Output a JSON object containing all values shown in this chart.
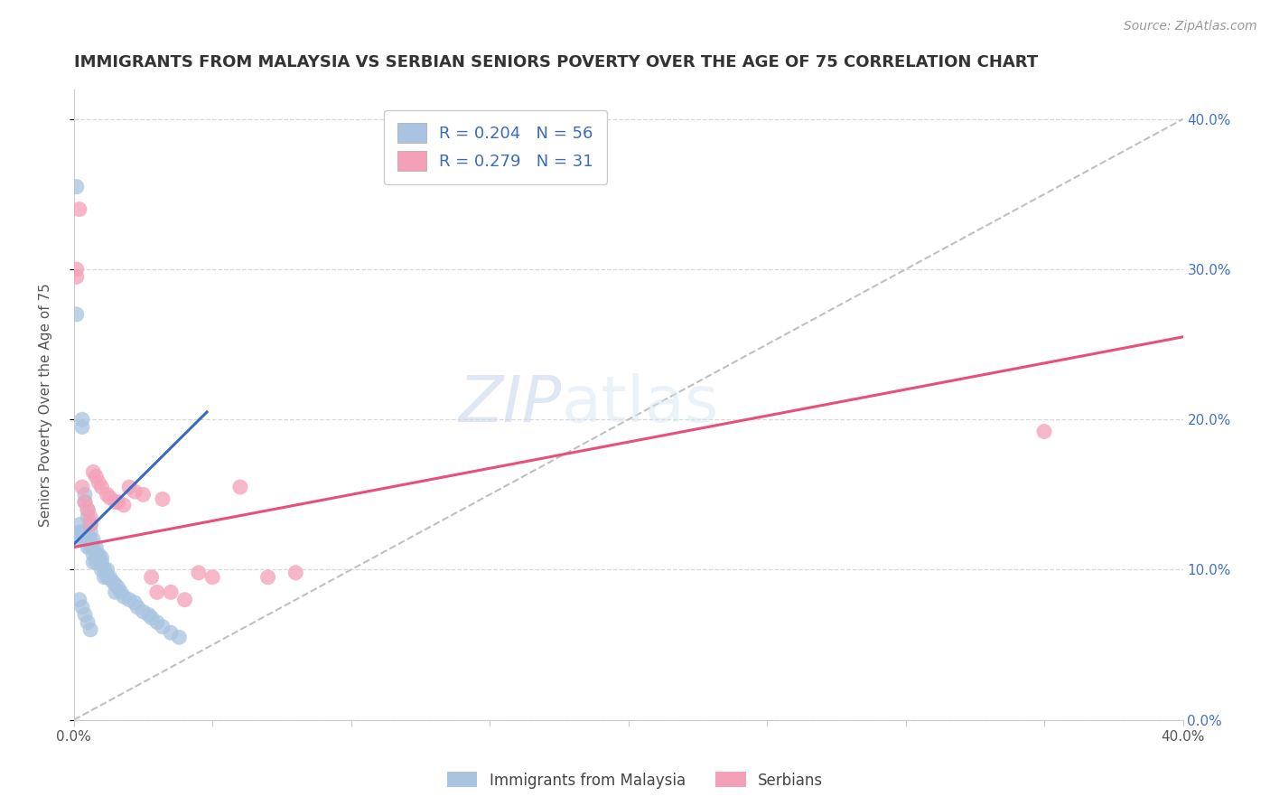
{
  "title": "IMMIGRANTS FROM MALAYSIA VS SERBIAN SENIORS POVERTY OVER THE AGE OF 75 CORRELATION CHART",
  "source": "Source: ZipAtlas.com",
  "ylabel": "Seniors Poverty Over the Age of 75",
  "xmin": 0.0,
  "xmax": 0.4,
  "ymin": 0.0,
  "ymax": 0.42,
  "malaysia_R": 0.204,
  "malaysia_N": 56,
  "serbian_R": 0.279,
  "serbian_N": 31,
  "malaysia_color": "#a8c4e0",
  "serbian_color": "#f4a0b8",
  "malaysia_line_color": "#3a6bbf",
  "serbian_line_color": "#e8507a",
  "background_color": "#ffffff",
  "grid_color": "#d8d8d8",
  "malaysia_x": [
    0.001,
    0.001,
    0.002,
    0.002,
    0.003,
    0.003,
    0.003,
    0.004,
    0.004,
    0.004,
    0.005,
    0.005,
    0.005,
    0.006,
    0.006,
    0.006,
    0.006,
    0.007,
    0.007,
    0.007,
    0.007,
    0.008,
    0.008,
    0.008,
    0.009,
    0.009,
    0.01,
    0.01,
    0.01,
    0.011,
    0.011,
    0.012,
    0.012,
    0.013,
    0.014,
    0.015,
    0.015,
    0.016,
    0.017,
    0.018,
    0.02,
    0.022,
    0.023,
    0.025,
    0.027,
    0.028,
    0.03,
    0.032,
    0.035,
    0.038,
    0.001,
    0.002,
    0.003,
    0.004,
    0.005,
    0.006
  ],
  "malaysia_y": [
    0.27,
    0.12,
    0.13,
    0.125,
    0.2,
    0.195,
    0.125,
    0.15,
    0.145,
    0.12,
    0.14,
    0.135,
    0.115,
    0.13,
    0.125,
    0.12,
    0.115,
    0.12,
    0.115,
    0.11,
    0.105,
    0.115,
    0.11,
    0.105,
    0.11,
    0.107,
    0.108,
    0.105,
    0.1,
    0.1,
    0.095,
    0.1,
    0.095,
    0.095,
    0.092,
    0.09,
    0.085,
    0.088,
    0.085,
    0.082,
    0.08,
    0.078,
    0.075,
    0.072,
    0.07,
    0.068,
    0.065,
    0.062,
    0.058,
    0.055,
    0.355,
    0.08,
    0.075,
    0.07,
    0.065,
    0.06
  ],
  "serbian_x": [
    0.001,
    0.001,
    0.002,
    0.003,
    0.004,
    0.005,
    0.006,
    0.006,
    0.007,
    0.008,
    0.009,
    0.01,
    0.012,
    0.013,
    0.015,
    0.016,
    0.018,
    0.02,
    0.022,
    0.025,
    0.028,
    0.03,
    0.032,
    0.035,
    0.04,
    0.045,
    0.05,
    0.06,
    0.07,
    0.08,
    0.35
  ],
  "serbian_y": [
    0.3,
    0.295,
    0.34,
    0.155,
    0.145,
    0.14,
    0.135,
    0.13,
    0.165,
    0.162,
    0.158,
    0.155,
    0.15,
    0.148,
    0.145,
    0.145,
    0.143,
    0.155,
    0.152,
    0.15,
    0.095,
    0.085,
    0.147,
    0.085,
    0.08,
    0.098,
    0.095,
    0.155,
    0.095,
    0.098,
    0.192
  ],
  "mal_line_x0": 0.0,
  "mal_line_x1": 0.048,
  "mal_line_y0": 0.117,
  "mal_line_y1": 0.205,
  "ser_line_x0": 0.0,
  "ser_line_x1": 0.4,
  "ser_line_y0": 0.115,
  "ser_line_y1": 0.255
}
